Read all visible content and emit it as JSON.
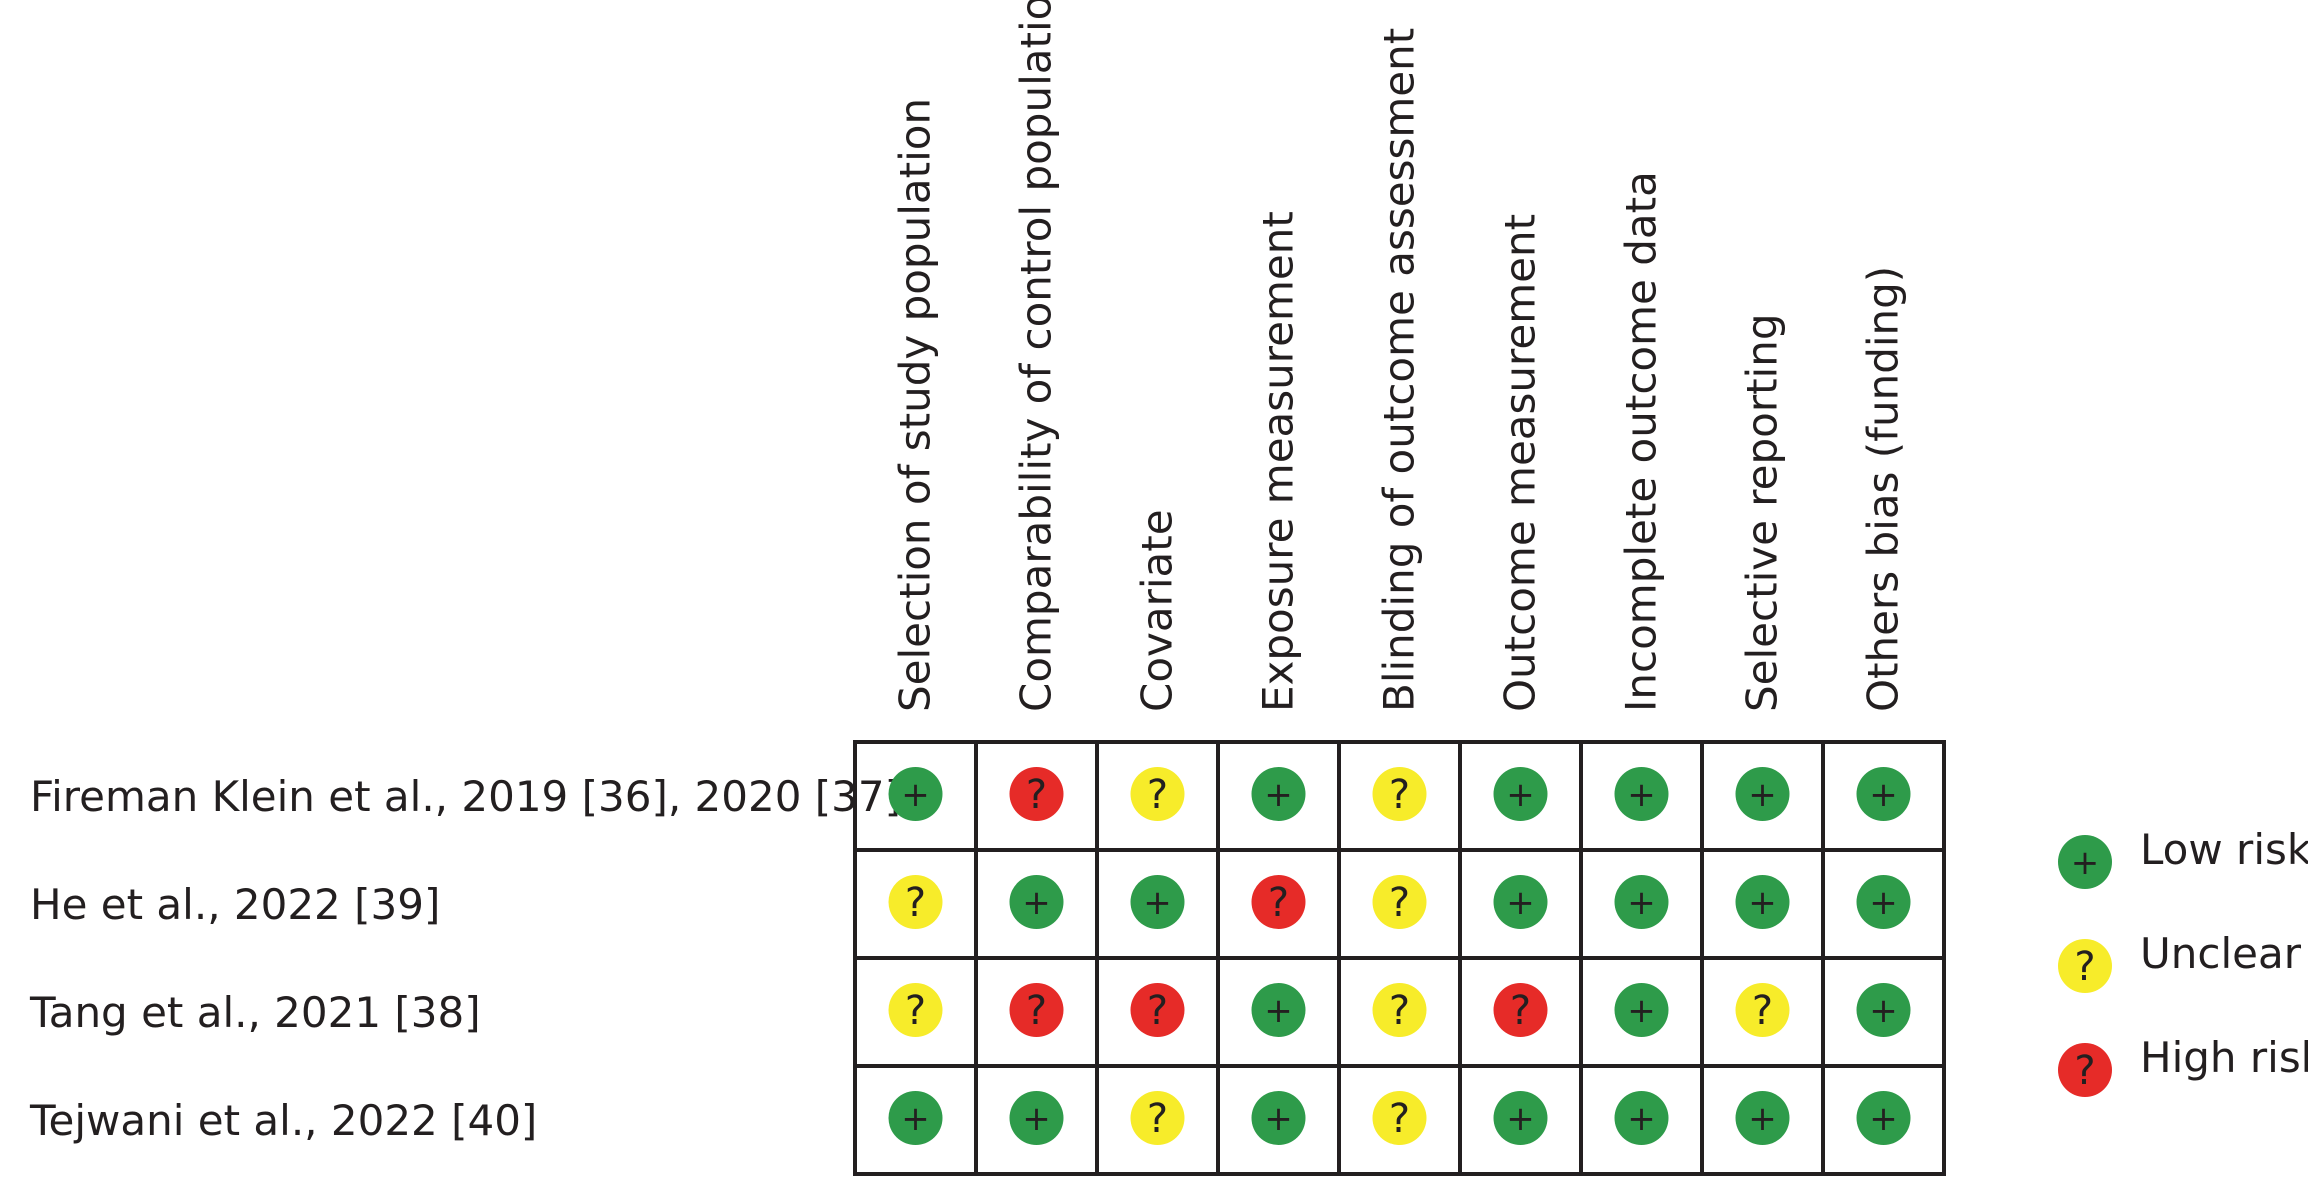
{
  "chart_data": {
    "type": "table",
    "title": "",
    "columns": [
      "Selection of study population",
      "Comparability of control population",
      "Covariate",
      "Exposure measurement",
      "Blinding of outcome assessment",
      "Outcome measurement",
      "Incomplete outcome data",
      "Selective reporting",
      "Others bias (funding)"
    ],
    "rows": [
      {
        "study": "Fireman Klein et al., 2019 [36], 2020 [37]",
        "ratings": [
          "low",
          "high",
          "unclear",
          "low",
          "unclear",
          "low",
          "low",
          "low",
          "low"
        ]
      },
      {
        "study": "He et al., 2022 [39]",
        "ratings": [
          "unclear",
          "low",
          "low",
          "high",
          "unclear",
          "low",
          "low",
          "low",
          "low"
        ]
      },
      {
        "study": "Tang et al., 2021 [38]",
        "ratings": [
          "unclear",
          "high",
          "high",
          "low",
          "unclear",
          "high",
          "low",
          "unclear",
          "low"
        ]
      },
      {
        "study": "Tejwani et al., 2022 [40]",
        "ratings": [
          "low",
          "low",
          "unclear",
          "low",
          "unclear",
          "low",
          "low",
          "low",
          "low"
        ]
      }
    ],
    "levels": {
      "low": {
        "symbol": "+",
        "color": "#2e9b4a",
        "label": "Low risk"
      },
      "unclear": {
        "symbol": "?",
        "color": "#f7ec2a",
        "label": "Unclear"
      },
      "high": {
        "symbol": "?",
        "color": "#e62b28",
        "label": "High risk"
      }
    },
    "legend_order": [
      "low",
      "unclear",
      "high"
    ],
    "legend_position": "right"
  }
}
